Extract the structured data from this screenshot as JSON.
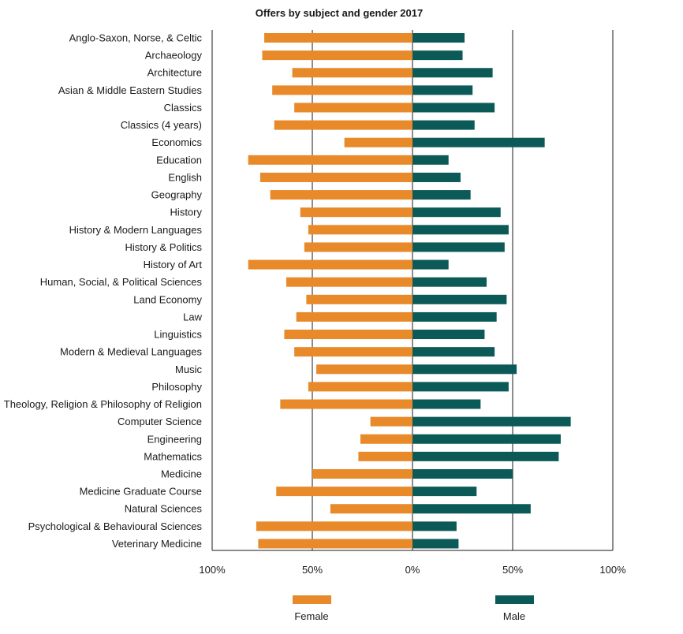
{
  "chart_data": {
    "type": "bar",
    "orientation": "horizontal-diverging",
    "title": "Offers by subject and gender 2017",
    "categories": [
      "Anglo-Saxon, Norse, & Celtic",
      "Archaeology",
      "Architecture",
      "Asian & Middle Eastern Studies",
      "Classics",
      "Classics (4 years)",
      "Economics",
      "Education",
      "English",
      "Geography",
      "History",
      "History & Modern Languages",
      "History & Politics",
      "History of Art",
      "Human, Social, & Political Sciences",
      "Land Economy",
      "Law",
      "Linguistics",
      "Modern & Medieval Languages",
      "Music",
      "Philosophy",
      "Theology, Religion & Philosophy of Religion",
      "Computer Science",
      "Engineering",
      "Mathematics",
      "Medicine",
      "Medicine Graduate Course",
      "Natural Sciences",
      "Psychological & Behavioural Sciences",
      "Veterinary Medicine"
    ],
    "series": [
      {
        "name": "Female",
        "color": "#e8892a",
        "values": [
          74,
          75,
          60,
          70,
          59,
          69,
          34,
          82,
          76,
          71,
          56,
          52,
          54,
          82,
          63,
          53,
          58,
          64,
          59,
          48,
          52,
          66,
          21,
          26,
          27,
          50,
          68,
          41,
          78,
          77
        ]
      },
      {
        "name": "Male",
        "color": "#0b5a57",
        "values": [
          26,
          25,
          40,
          30,
          41,
          31,
          66,
          18,
          24,
          29,
          44,
          48,
          46,
          18,
          37,
          47,
          42,
          36,
          41,
          52,
          48,
          34,
          79,
          74,
          73,
          50,
          32,
          59,
          22,
          23
        ]
      }
    ],
    "x_ticks": [
      "100%",
      "50%",
      "0%",
      "50%",
      "100%"
    ],
    "xlim": [
      -100,
      100
    ],
    "grid": "vertical at 50% intervals",
    "legend_position": "bottom"
  }
}
